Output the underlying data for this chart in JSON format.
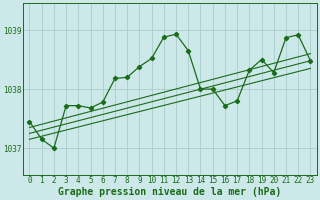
{
  "title": "Graphe pression niveau de la mer (hPa)",
  "bg_color": "#cce8e8",
  "grid_color": "#aacccc",
  "line_color": "#1a6b1a",
  "xlim": [
    -0.5,
    23.5
  ],
  "ylim": [
    1036.55,
    1039.45
  ],
  "yticks": [
    1037,
    1038,
    1039
  ],
  "xticks": [
    0,
    1,
    2,
    3,
    4,
    5,
    6,
    7,
    8,
    9,
    10,
    11,
    12,
    13,
    14,
    15,
    16,
    17,
    18,
    19,
    20,
    21,
    22,
    23
  ],
  "series1_y": [
    1037.45,
    1037.15,
    1037.0,
    1037.72,
    1037.72,
    1037.68,
    1037.78,
    1038.18,
    1038.2,
    1038.38,
    1038.52,
    1038.88,
    1038.93,
    1038.65,
    1038.0,
    1038.0,
    1037.72,
    1037.8,
    1038.32,
    1038.5,
    1038.28,
    1038.87,
    1038.92,
    1038.48
  ],
  "trend1_x": [
    0,
    23
  ],
  "trend1_y": [
    1037.15,
    1038.35
  ],
  "trend2_x": [
    0,
    23
  ],
  "trend2_y": [
    1037.25,
    1038.48
  ],
  "trend3_x": [
    0,
    23
  ],
  "trend3_y": [
    1037.35,
    1038.6
  ],
  "tick_fontsize": 5.5,
  "label_fontsize": 7.0
}
